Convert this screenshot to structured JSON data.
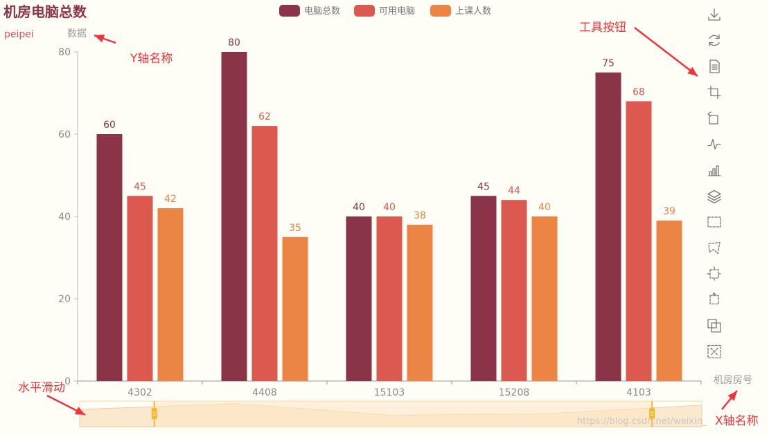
{
  "chart_data": {
    "type": "bar",
    "title": "机房电脑总数",
    "subtitle": "peipei",
    "ylabel": "数据",
    "xlabel": "机房房号",
    "ylim": [
      0,
      80
    ],
    "yticks": [
      0,
      20,
      40,
      60,
      80
    ],
    "categories": [
      "4302",
      "4408",
      "15103",
      "15208",
      "4103"
    ],
    "series": [
      {
        "name": "电脑总数",
        "values": [
          60,
          80,
          40,
          45,
          75
        ],
        "color": "#8b3347"
      },
      {
        "name": "可用电脑",
        "values": [
          45,
          62,
          40,
          44,
          68
        ],
        "color": "#dc5950"
      },
      {
        "name": "上课人数",
        "values": [
          42,
          35,
          38,
          40,
          39
        ],
        "color": "#ec8446"
      }
    ],
    "grid": false,
    "legend_position": "top-center"
  },
  "toolbox": {
    "icons": [
      "download-icon",
      "refresh-icon",
      "data-view-icon",
      "zoom-icon",
      "zoom-reset-icon",
      "line-chart-icon",
      "bar-chart-icon",
      "stack-icon",
      "rect-select-icon",
      "polygon-select-icon",
      "keep-select-icon",
      "clear-select-icon",
      "brush-icon",
      "clear-brush-icon"
    ]
  },
  "slider": {
    "start": 0.12,
    "end": 0.92,
    "colors": {
      "fill": "#fde6c2",
      "handle": "#f7b733",
      "border": "#f5d6a6"
    }
  },
  "annotations": {
    "yname": "Y轴名称",
    "tools": "工具按钮",
    "slider": "水平滑动",
    "xname": "X轴名称",
    "color": "#f2333a"
  },
  "watermark": "https://blog.csdn.net/weixin_"
}
